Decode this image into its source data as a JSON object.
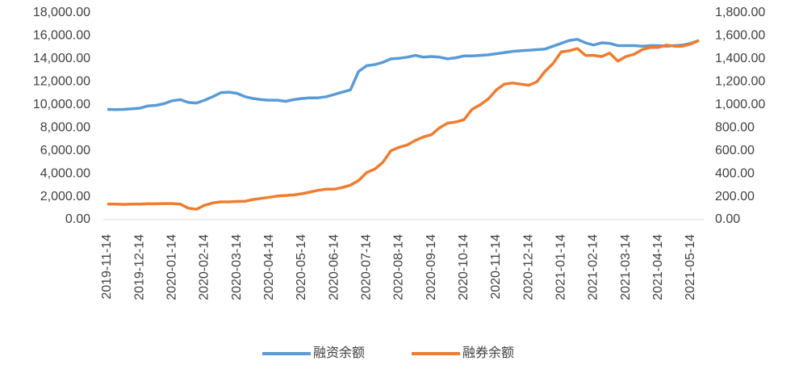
{
  "chart_data": {
    "type": "line",
    "categories": [
      "2019-11-14",
      null,
      null,
      null,
      "2019-12-14",
      null,
      null,
      null,
      "2020-01-14",
      null,
      null,
      null,
      "2020-02-14",
      null,
      null,
      null,
      "2020-03-14",
      null,
      null,
      null,
      "2020-04-14",
      null,
      null,
      null,
      "2020-05-14",
      null,
      null,
      null,
      "2020-06-14",
      null,
      null,
      null,
      "2020-07-14",
      null,
      null,
      null,
      "2020-08-14",
      null,
      null,
      null,
      "2020-09-14",
      null,
      null,
      null,
      "2020-10-14",
      null,
      null,
      null,
      "2020-11-14",
      null,
      null,
      null,
      "2020-12-14",
      null,
      null,
      null,
      "2021-01-14",
      null,
      null,
      null,
      "2021-02-14",
      null,
      null,
      null,
      "2021-03-14",
      null,
      null,
      null,
      "2021-04-14",
      null,
      null,
      null,
      "2021-05-14",
      null
    ],
    "series": [
      {
        "name": "融资余额",
        "color": "#5b9bd5",
        "values": [
          9600,
          9580,
          9600,
          9650,
          9700,
          9900,
          9950,
          10100,
          10350,
          10450,
          10200,
          10150,
          10400,
          10700,
          11050,
          11100,
          11000,
          10700,
          10550,
          10450,
          10400,
          10400,
          10300,
          10450,
          10550,
          10600,
          10600,
          10700,
          10900,
          11100,
          11300,
          12900,
          13400,
          13500,
          13700,
          14000,
          14050,
          14150,
          14300,
          14150,
          14200,
          14150,
          14000,
          14100,
          14250,
          14250,
          14300,
          14350,
          14450,
          14550,
          14650,
          14700,
          14750,
          14800,
          14850,
          15100,
          15350,
          15600,
          15700,
          15400,
          15200,
          15400,
          15350,
          15150,
          15150,
          15150,
          15100,
          15150,
          15150,
          15100,
          15150,
          15200,
          15350,
          15600
        ]
      },
      {
        "name": "融券余额",
        "color": "#ed7d31",
        "axis": "y2",
        "values": [
          135,
          135,
          133,
          135,
          135,
          138,
          138,
          140,
          140,
          135,
          100,
          90,
          125,
          145,
          155,
          155,
          158,
          160,
          175,
          185,
          195,
          205,
          210,
          215,
          225,
          240,
          255,
          265,
          265,
          280,
          300,
          340,
          410,
          440,
          500,
          600,
          630,
          650,
          690,
          720,
          740,
          800,
          840,
          850,
          870,
          960,
          1000,
          1050,
          1130,
          1180,
          1190,
          1180,
          1170,
          1200,
          1290,
          1360,
          1460,
          1470,
          1490,
          1430,
          1430,
          1420,
          1450,
          1380,
          1420,
          1440,
          1480,
          1500,
          1500,
          1520,
          1510,
          1510,
          1530,
          1560
        ]
      }
    ],
    "ylim": [
      0,
      18000
    ],
    "yticks": [
      {
        "value": 0,
        "label": "0.00"
      },
      {
        "value": 2000,
        "label": "2,000.00"
      },
      {
        "value": 4000,
        "label": "4,000.00"
      },
      {
        "value": 6000,
        "label": "6,000.00"
      },
      {
        "value": 8000,
        "label": "8,000.00"
      },
      {
        "value": 10000,
        "label": "10,000.00"
      },
      {
        "value": 12000,
        "label": "12,000.00"
      },
      {
        "value": 14000,
        "label": "14,000.00"
      },
      {
        "value": 16000,
        "label": "16,000.00"
      },
      {
        "value": 18000,
        "label": "18,000.00"
      }
    ],
    "y2lim": [
      0,
      1800
    ],
    "y2ticks": [
      {
        "value": 0,
        "label": "0.00"
      },
      {
        "value": 200,
        "label": "200.00"
      },
      {
        "value": 400,
        "label": "400.00"
      },
      {
        "value": 600,
        "label": "600.00"
      },
      {
        "value": 800,
        "label": "800.00"
      },
      {
        "value": 1000,
        "label": "1,000.00"
      },
      {
        "value": 1200,
        "label": "1,200.00"
      },
      {
        "value": 1400,
        "label": "1,400.00"
      },
      {
        "value": 1600,
        "label": "1,600.00"
      },
      {
        "value": 1800,
        "label": "1,800.00"
      }
    ],
    "legend": "bottom"
  }
}
